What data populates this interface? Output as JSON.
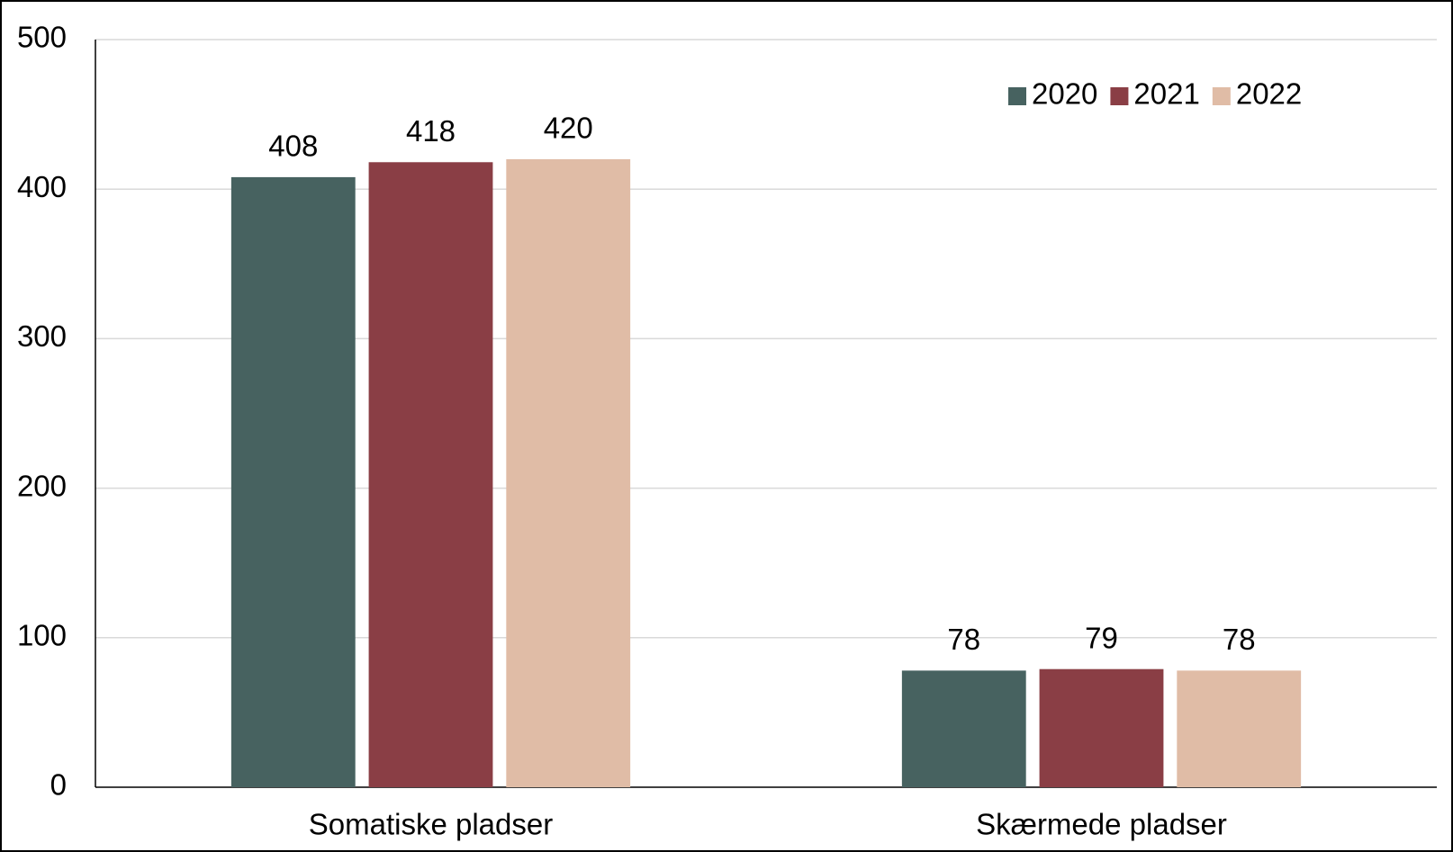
{
  "chart_data": {
    "type": "bar",
    "categories": [
      "Somatiske pladser",
      "Skærmede pladser"
    ],
    "series": [
      {
        "name": "2020",
        "color": "#476260",
        "values": [
          408,
          78
        ]
      },
      {
        "name": "2021",
        "color": "#8a3e45",
        "values": [
          418,
          79
        ]
      },
      {
        "name": "2022",
        "color": "#e0bca6",
        "values": [
          420,
          78
        ]
      }
    ],
    "ylim": [
      0,
      500
    ],
    "yticks": [
      0,
      100,
      200,
      300,
      400,
      500
    ],
    "grid": true,
    "legend": "top-right"
  }
}
